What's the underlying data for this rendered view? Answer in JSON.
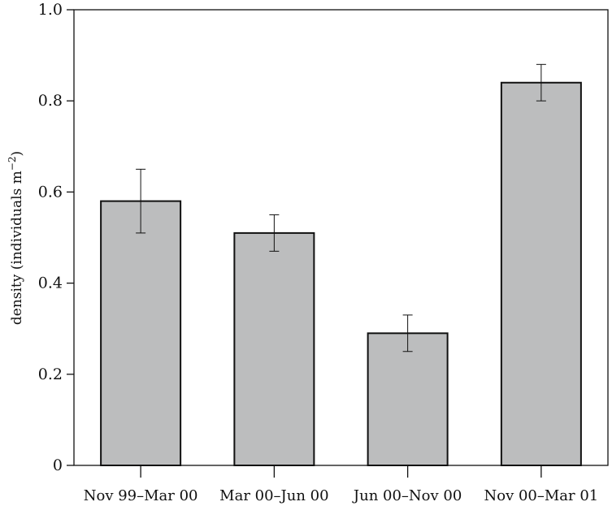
{
  "chart_data": {
    "type": "bar",
    "categories": [
      "Nov 99–Mar 00",
      "Mar 00–Jun 00",
      "Jun 00–Nov 00",
      "Nov 00–Mar 01"
    ],
    "values": [
      0.58,
      0.51,
      0.29,
      0.84
    ],
    "error_low": [
      0.51,
      0.47,
      0.25,
      0.8
    ],
    "error_high": [
      0.65,
      0.55,
      0.33,
      0.88
    ],
    "ylim": [
      0,
      1.0
    ],
    "yticks": [
      0,
      0.2,
      0.4,
      0.6,
      0.8,
      1.0
    ],
    "ytick_labels": [
      "0",
      "0.2",
      "0.4",
      "0.6",
      "0.8",
      "1.0"
    ],
    "ylabel": "density (individuals m",
    "ylabel_superscript": "−2",
    "ylabel_suffix": ")",
    "title": "",
    "xlabel": "",
    "grid": false,
    "colors": {
      "bar_fill": "#bcbdbe",
      "bar_stroke": "#111111",
      "axis": "#111111"
    }
  }
}
